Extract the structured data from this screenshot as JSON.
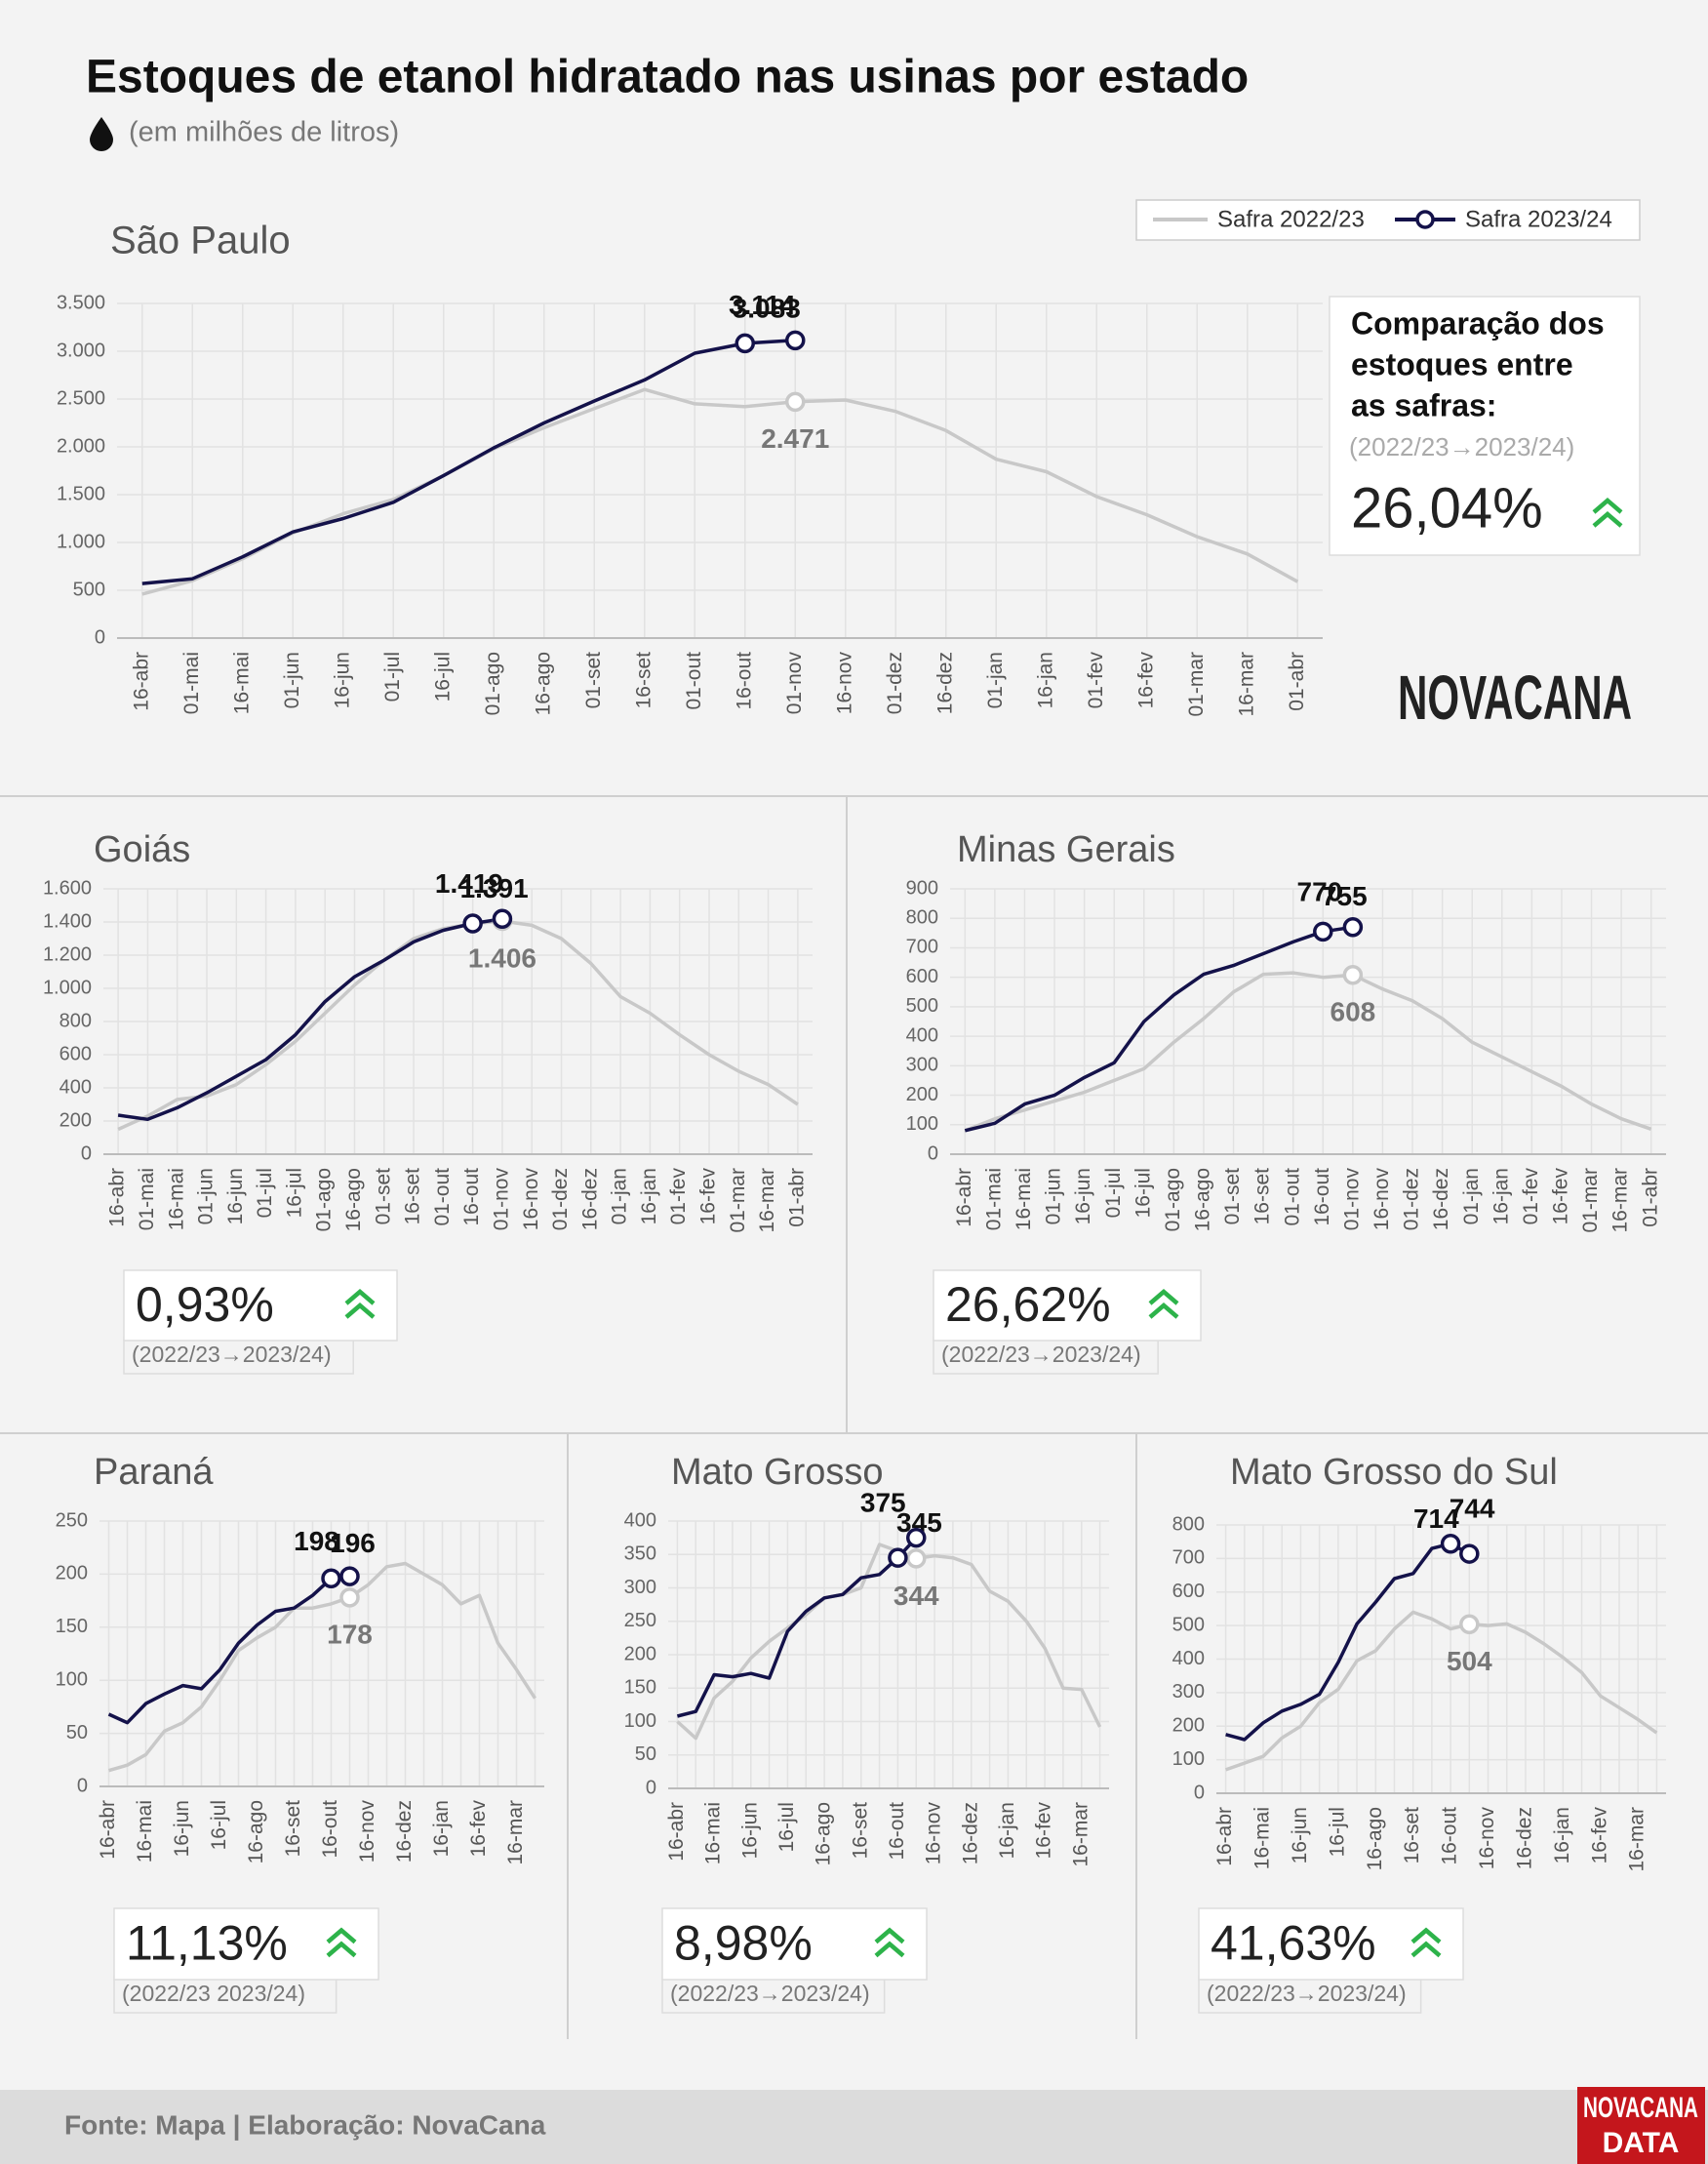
{
  "title": "Estoques de etanol hidratado nas usinas por estado",
  "subtitle": "(em milhões de litros)",
  "legend": [
    {
      "name": "Safra 2022/23",
      "color": "#c8c8c8"
    },
    {
      "name": "Safra 2023/24",
      "color": "#14124a"
    }
  ],
  "logo": "NOVACANA",
  "logo_data": [
    "NOVACANA",
    "DATA"
  ],
  "source": "Fonte: Mapa | Elaboração: NovaCana",
  "chart_data": [
    {
      "type": "line",
      "title": "São Paulo",
      "comparison_title": [
        "Comparação dos",
        "estoques entre",
        "as safras:"
      ],
      "change": "26,04%",
      "change_period": "(2022/23→2023/24)",
      "categories": [
        "16-abr",
        "01-mai",
        "16-mai",
        "01-jun",
        "16-jun",
        "01-jul",
        "16-jul",
        "01-ago",
        "16-ago",
        "01-set",
        "16-set",
        "01-out",
        "16-out",
        "01-nov",
        "16-nov",
        "01-dez",
        "16-dez",
        "01-jan",
        "16-jan",
        "01-fev",
        "16-fev",
        "01-mar",
        "16-mar",
        "01-abr"
      ],
      "series": [
        {
          "values": [
            460,
            600,
            830,
            1100,
            1300,
            1450,
            1700,
            1980,
            2200,
            2400,
            2600,
            2450,
            2420,
            2471,
            2490,
            2370,
            2170,
            1870,
            1740,
            1480,
            1290,
            1060,
            880,
            590
          ],
          "value_labels": [
            null,
            null,
            null,
            null,
            null,
            null,
            null,
            null,
            null,
            null,
            null,
            null,
            null,
            "2.471",
            null,
            null,
            null,
            null,
            null,
            null,
            null,
            null,
            null,
            null
          ]
        },
        {
          "values": [
            570,
            620,
            850,
            1110,
            1250,
            1420,
            1700,
            1990,
            2250,
            2480,
            2700,
            2980,
            3083,
            3114,
            null,
            null,
            null,
            null,
            null,
            null,
            null,
            null,
            null,
            null
          ],
          "value_labels": [
            null,
            null,
            null,
            null,
            null,
            null,
            null,
            null,
            null,
            null,
            null,
            null,
            "3.083",
            "3.114",
            null,
            null,
            null,
            null,
            null,
            null,
            null,
            null,
            null,
            null
          ]
        }
      ],
      "ylim": [
        0,
        3500
      ],
      "yticks": [
        0,
        500,
        {
          "value": 1000,
          "label": "1.000"
        },
        {
          "value": 1500,
          "label": "1.500"
        },
        {
          "value": 2000,
          "label": "2.000"
        },
        {
          "value": 2500,
          "label": "2.500"
        },
        {
          "value": 3000,
          "label": "3.000"
        },
        {
          "value": 3500,
          "label": "3.500"
        }
      ],
      "grid": true
    },
    {
      "type": "line",
      "title": "Goiás",
      "change": "0,93%",
      "change_period": "(2022/23→2023/24)",
      "categories": [
        "16-abr",
        "01-mai",
        "16-mai",
        "01-jun",
        "16-jun",
        "01-jul",
        "16-jul",
        "01-ago",
        "16-ago",
        "01-set",
        "16-set",
        "01-out",
        "16-out",
        "01-nov",
        "16-nov",
        "01-dez",
        "16-dez",
        "01-jan",
        "16-jan",
        "01-fev",
        "16-fev",
        "01-mar",
        "16-mar",
        "01-abr"
      ],
      "series": [
        {
          "values": [
            150,
            230,
            330,
            350,
            420,
            540,
            680,
            850,
            1020,
            1170,
            1300,
            1360,
            1390,
            1406,
            1380,
            1300,
            1150,
            950,
            850,
            720,
            600,
            500,
            420,
            300
          ],
          "value_labels": [
            null,
            null,
            null,
            null,
            null,
            null,
            null,
            null,
            null,
            null,
            null,
            null,
            null,
            "1.406",
            null,
            null,
            null,
            null,
            null,
            null,
            null,
            null,
            null,
            null
          ]
        },
        {
          "values": [
            235,
            210,
            280,
            370,
            470,
            570,
            720,
            920,
            1070,
            1170,
            1280,
            1350,
            1391,
            1419,
            null,
            null,
            null,
            null,
            null,
            null,
            null,
            null,
            null,
            null
          ],
          "value_labels": [
            null,
            null,
            null,
            null,
            null,
            null,
            null,
            null,
            null,
            null,
            null,
            null,
            "1.391",
            "1.419",
            null,
            null,
            null,
            null,
            null,
            null,
            null,
            null,
            null,
            null
          ]
        }
      ],
      "ylim": [
        0,
        1600
      ],
      "yticks": [
        0,
        200,
        400,
        600,
        800,
        {
          "value": 1000,
          "label": "1.000"
        },
        {
          "value": 1200,
          "label": "1.200"
        },
        {
          "value": 1400,
          "label": "1.400"
        },
        {
          "value": 1600,
          "label": "1.600"
        }
      ],
      "grid": true
    },
    {
      "type": "line",
      "title": "Minas Gerais",
      "change": "26,62%",
      "change_period": "(2022/23→2023/24)",
      "categories": [
        "16-abr",
        "01-mai",
        "16-mai",
        "01-jun",
        "16-jun",
        "01-jul",
        "16-jul",
        "01-ago",
        "16-ago",
        "01-set",
        "16-set",
        "01-out",
        "16-out",
        "01-nov",
        "16-nov",
        "01-dez",
        "16-dez",
        "01-jan",
        "16-jan",
        "01-fev",
        "16-fev",
        "01-mar",
        "16-mar",
        "01-abr"
      ],
      "series": [
        {
          "values": [
            80,
            120,
            150,
            180,
            210,
            250,
            290,
            380,
            460,
            550,
            610,
            615,
            600,
            608,
            560,
            520,
            460,
            380,
            330,
            280,
            230,
            170,
            120,
            85
          ],
          "value_labels": [
            null,
            null,
            null,
            null,
            null,
            null,
            null,
            null,
            null,
            null,
            null,
            null,
            null,
            "608",
            null,
            null,
            null,
            null,
            null,
            null,
            null,
            null,
            null,
            null
          ]
        },
        {
          "values": [
            80,
            105,
            170,
            200,
            260,
            310,
            450,
            540,
            610,
            640,
            680,
            720,
            755,
            770,
            null,
            null,
            null,
            null,
            null,
            null,
            null,
            null,
            null,
            null
          ],
          "value_labels": [
            null,
            null,
            null,
            null,
            null,
            null,
            null,
            null,
            null,
            null,
            null,
            null,
            "755",
            "770",
            null,
            null,
            null,
            null,
            null,
            null,
            null,
            null,
            null,
            null
          ]
        }
      ],
      "ylim": [
        0,
        900
      ],
      "yticks": [
        0,
        100,
        200,
        300,
        400,
        500,
        600,
        700,
        800,
        900
      ],
      "grid": true
    },
    {
      "type": "line",
      "title": "Paraná",
      "change": "11,13%",
      "change_period": "(2022/23 2023/24)",
      "categories": [
        "16-abr",
        null,
        "16-mai",
        null,
        "16-jun",
        null,
        "16-jul",
        null,
        "16-ago",
        null,
        "16-set",
        null,
        "16-out",
        null,
        "16-nov",
        null,
        "16-dez",
        null,
        "16-jan",
        null,
        "16-fev",
        null,
        "16-mar",
        null
      ],
      "series": [
        {
          "values": [
            15,
            20,
            30,
            52,
            60,
            75,
            100,
            128,
            140,
            150,
            168,
            168,
            172,
            178,
            190,
            207,
            210,
            200,
            190,
            172,
            180,
            135,
            110,
            83
          ],
          "value_labels": [
            null,
            null,
            null,
            null,
            null,
            null,
            null,
            null,
            null,
            null,
            null,
            null,
            null,
            "178",
            null,
            null,
            null,
            null,
            null,
            null,
            null,
            null,
            null,
            null
          ]
        },
        {
          "values": [
            68,
            60,
            78,
            87,
            95,
            92,
            110,
            135,
            152,
            165,
            168,
            180,
            196,
            198,
            null,
            null,
            null,
            null,
            null,
            null,
            null,
            null,
            null,
            null
          ],
          "value_labels": [
            null,
            null,
            null,
            null,
            null,
            null,
            null,
            null,
            null,
            null,
            null,
            null,
            "196",
            "198",
            null,
            null,
            null,
            null,
            null,
            null,
            null,
            null,
            null,
            null
          ]
        }
      ],
      "ylim": [
        0,
        250
      ],
      "yticks": [
        0,
        50,
        100,
        150,
        200,
        250
      ],
      "grid": true
    },
    {
      "type": "line",
      "title": "Mato Grosso",
      "change": "8,98%",
      "change_period": "(2022/23→2023/24)",
      "categories": [
        "16-abr",
        null,
        "16-mai",
        null,
        "16-jun",
        null,
        "16-jul",
        null,
        "16-ago",
        null,
        "16-set",
        null,
        "16-out",
        null,
        "16-nov",
        null,
        "16-dez",
        null,
        "16-jan",
        null,
        "16-fev",
        null,
        "16-mar",
        null
      ],
      "series": [
        {
          "values": [
            100,
            75,
            135,
            160,
            195,
            220,
            240,
            260,
            285,
            290,
            300,
            365,
            355,
            344,
            348,
            345,
            335,
            295,
            280,
            250,
            210,
            150,
            148,
            92
          ],
          "value_labels": [
            null,
            null,
            null,
            null,
            null,
            null,
            null,
            null,
            null,
            null,
            null,
            null,
            null,
            "344",
            null,
            null,
            null,
            null,
            null,
            null,
            null,
            null,
            null,
            null
          ]
        },
        {
          "values": [
            108,
            115,
            170,
            167,
            172,
            165,
            235,
            265,
            285,
            290,
            315,
            320,
            345,
            375,
            null,
            null,
            null,
            null,
            null,
            null,
            null,
            null,
            null,
            null
          ],
          "value_labels": [
            null,
            null,
            null,
            null,
            null,
            null,
            null,
            null,
            null,
            null,
            null,
            null,
            "345",
            "375",
            null,
            null,
            null,
            null,
            null,
            null,
            null,
            null,
            null,
            null
          ]
        }
      ],
      "ylim": [
        0,
        400
      ],
      "yticks": [
        0,
        50,
        100,
        150,
        200,
        250,
        300,
        350,
        400
      ],
      "grid": true
    },
    {
      "type": "line",
      "title": "Mato Grosso do Sul",
      "change": "41,63%",
      "change_period": "(2022/23→2023/24)",
      "categories": [
        "16-abr",
        null,
        "16-mai",
        null,
        "16-jun",
        null,
        "16-jul",
        null,
        "16-ago",
        null,
        "16-set",
        null,
        "16-out",
        null,
        "16-nov",
        null,
        "16-dez",
        null,
        "16-jan",
        null,
        "16-fev",
        null,
        "16-mar",
        null
      ],
      "series": [
        {
          "values": [
            70,
            90,
            110,
            165,
            200,
            270,
            310,
            395,
            425,
            490,
            540,
            520,
            490,
            504,
            500,
            505,
            480,
            445,
            405,
            360,
            290,
            255,
            220,
            180
          ],
          "value_labels": [
            null,
            null,
            null,
            null,
            null,
            null,
            null,
            null,
            null,
            null,
            null,
            null,
            null,
            "504",
            null,
            null,
            null,
            null,
            null,
            null,
            null,
            null,
            null,
            null
          ]
        },
        {
          "values": [
            175,
            160,
            210,
            245,
            265,
            295,
            390,
            505,
            570,
            640,
            655,
            730,
            744,
            714,
            null,
            null,
            null,
            null,
            null,
            null,
            null,
            null,
            null,
            null
          ],
          "value_labels": [
            null,
            null,
            null,
            null,
            null,
            null,
            null,
            null,
            null,
            null,
            null,
            null,
            "744",
            "714",
            null,
            null,
            null,
            null,
            null,
            null,
            null,
            null,
            null,
            null
          ]
        }
      ],
      "ylim": [
        0,
        800
      ],
      "yticks": [
        0,
        100,
        200,
        300,
        400,
        500,
        600,
        700,
        800
      ],
      "grid": true
    }
  ]
}
